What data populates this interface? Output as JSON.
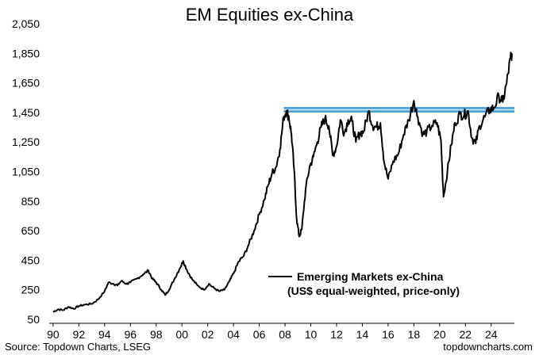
{
  "chart_data": {
    "type": "line",
    "title": "EM Equities ex-China",
    "xlabel": "",
    "ylabel": "",
    "ylim": [
      50,
      2050
    ],
    "xlim": [
      1989.7,
      2025.8
    ],
    "y_ticks": [
      "50",
      "250",
      "450",
      "650",
      "850",
      "1,050",
      "1,250",
      "1,450",
      "1,650",
      "1,850",
      "2,050"
    ],
    "y_tick_values": [
      50,
      250,
      450,
      650,
      850,
      1050,
      1250,
      1450,
      1650,
      1850,
      2050
    ],
    "x_ticks": [
      "90",
      "92",
      "94",
      "96",
      "98",
      "00",
      "02",
      "04",
      "06",
      "08",
      "10",
      "12",
      "14",
      "16",
      "18",
      "20",
      "22",
      "24"
    ],
    "x_tick_values": [
      1990,
      1992,
      1994,
      1996,
      1998,
      2000,
      2002,
      2004,
      2006,
      2008,
      2010,
      2012,
      2014,
      2016,
      2018,
      2020,
      2022,
      2024
    ],
    "grid": false,
    "series": [
      {
        "name": "Emerging Markets ex-China",
        "color": "#000000",
        "points": [
          [
            1990.0,
            100
          ],
          [
            1990.4,
            118
          ],
          [
            1990.8,
            112
          ],
          [
            1991.2,
            135
          ],
          [
            1991.6,
            122
          ],
          [
            1992.0,
            140
          ],
          [
            1992.5,
            150
          ],
          [
            1993.0,
            155
          ],
          [
            1993.5,
            185
          ],
          [
            1994.0,
            240
          ],
          [
            1994.3,
            300
          ],
          [
            1994.7,
            290
          ],
          [
            1995.0,
            280
          ],
          [
            1995.3,
            310
          ],
          [
            1995.7,
            290
          ],
          [
            1996.0,
            300
          ],
          [
            1996.5,
            325
          ],
          [
            1997.0,
            355
          ],
          [
            1997.4,
            380
          ],
          [
            1997.7,
            325
          ],
          [
            1998.0,
            300
          ],
          [
            1998.4,
            250
          ],
          [
            1998.7,
            215
          ],
          [
            1999.0,
            250
          ],
          [
            1999.4,
            320
          ],
          [
            1999.8,
            390
          ],
          [
            2000.1,
            445
          ],
          [
            2000.4,
            380
          ],
          [
            2000.8,
            320
          ],
          [
            2001.2,
            280
          ],
          [
            2001.7,
            250
          ],
          [
            2002.1,
            290
          ],
          [
            2002.5,
            260
          ],
          [
            2002.9,
            240
          ],
          [
            2003.3,
            250
          ],
          [
            2003.7,
            310
          ],
          [
            2004.0,
            360
          ],
          [
            2004.4,
            440
          ],
          [
            2004.8,
            480
          ],
          [
            2005.2,
            560
          ],
          [
            2005.6,
            650
          ],
          [
            2006.0,
            760
          ],
          [
            2006.4,
            860
          ],
          [
            2006.7,
            960
          ],
          [
            2007.0,
            1040
          ],
          [
            2007.3,
            1080
          ],
          [
            2007.6,
            1200
          ],
          [
            2007.9,
            1420
          ],
          [
            2008.1,
            1460
          ],
          [
            2008.3,
            1420
          ],
          [
            2008.5,
            1300
          ],
          [
            2008.7,
            1070
          ],
          [
            2008.9,
            730
          ],
          [
            2009.1,
            610
          ],
          [
            2009.3,
            660
          ],
          [
            2009.6,
            930
          ],
          [
            2009.9,
            1080
          ],
          [
            2010.2,
            1150
          ],
          [
            2010.5,
            1250
          ],
          [
            2010.8,
            1350
          ],
          [
            2011.1,
            1410
          ],
          [
            2011.4,
            1360
          ],
          [
            2011.7,
            1160
          ],
          [
            2012.0,
            1220
          ],
          [
            2012.3,
            1400
          ],
          [
            2012.6,
            1310
          ],
          [
            2012.9,
            1400
          ],
          [
            2013.2,
            1390
          ],
          [
            2013.5,
            1250
          ],
          [
            2013.8,
            1310
          ],
          [
            2014.1,
            1320
          ],
          [
            2014.5,
            1460
          ],
          [
            2014.8,
            1360
          ],
          [
            2015.1,
            1350
          ],
          [
            2015.4,
            1380
          ],
          [
            2015.7,
            1110
          ],
          [
            2016.0,
            1000
          ],
          [
            2016.4,
            1120
          ],
          [
            2016.8,
            1170
          ],
          [
            2017.2,
            1300
          ],
          [
            2017.6,
            1400
          ],
          [
            2018.0,
            1530
          ],
          [
            2018.3,
            1420
          ],
          [
            2018.7,
            1300
          ],
          [
            2019.0,
            1320
          ],
          [
            2019.4,
            1360
          ],
          [
            2019.8,
            1380
          ],
          [
            2020.1,
            1260
          ],
          [
            2020.3,
            880
          ],
          [
            2020.6,
            1050
          ],
          [
            2020.9,
            1230
          ],
          [
            2021.2,
            1380
          ],
          [
            2021.6,
            1440
          ],
          [
            2021.9,
            1430
          ],
          [
            2022.2,
            1460
          ],
          [
            2022.5,
            1280
          ],
          [
            2022.8,
            1240
          ],
          [
            2023.1,
            1360
          ],
          [
            2023.5,
            1420
          ],
          [
            2023.9,
            1470
          ],
          [
            2024.2,
            1480
          ],
          [
            2024.6,
            1560
          ],
          [
            2024.9,
            1520
          ],
          [
            2025.2,
            1650
          ],
          [
            2025.5,
            1820
          ],
          [
            2025.6,
            1850
          ]
        ]
      }
    ],
    "reference_bands": [
      {
        "y": 1458,
        "color": "#3a9bd5"
      },
      {
        "y": 1478,
        "color": "#3a9bd5"
      }
    ],
    "band_x_range": [
      2007.9,
      2025.8
    ],
    "legend": {
      "line1": "Emerging Markets ex-China",
      "line2": "(US$ equal-weighted, price-only)",
      "placement": "center-right"
    }
  },
  "footer": {
    "source": "Source: Topdown Charts, LSEG",
    "brand": "topdowncharts.com"
  }
}
